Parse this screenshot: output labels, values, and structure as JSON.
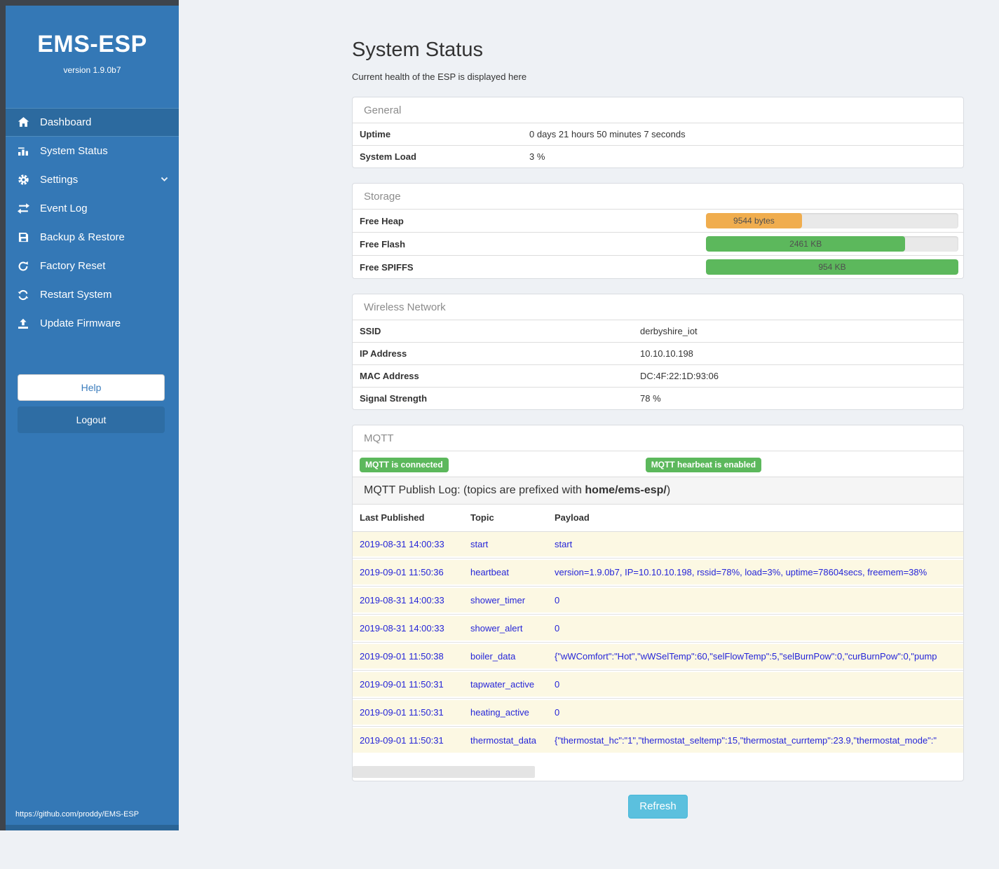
{
  "sidebar": {
    "title": "EMS-ESP",
    "version": "version 1.9.0b7",
    "items": [
      {
        "label": "Dashboard",
        "icon": "home-icon",
        "active": true,
        "chevron": false
      },
      {
        "label": "System Status",
        "icon": "status-bars-icon",
        "active": false,
        "chevron": false
      },
      {
        "label": "Settings",
        "icon": "gear-icon",
        "active": false,
        "chevron": true
      },
      {
        "label": "Event Log",
        "icon": "exchange-icon",
        "active": false,
        "chevron": false
      },
      {
        "label": "Backup & Restore",
        "icon": "save-icon",
        "active": false,
        "chevron": false
      },
      {
        "label": "Factory Reset",
        "icon": "redo-icon",
        "active": false,
        "chevron": false
      },
      {
        "label": "Restart System",
        "icon": "sync-icon",
        "active": false,
        "chevron": false
      },
      {
        "label": "Update Firmware",
        "icon": "upload-icon",
        "active": false,
        "chevron": false
      }
    ],
    "help_label": "Help",
    "logout_label": "Logout",
    "footer_link": "https://github.com/proddy/EMS-ESP"
  },
  "page": {
    "title": "System Status",
    "subtitle": "Current health of the ESP is displayed here",
    "refresh_label": "Refresh"
  },
  "general": {
    "heading": "General",
    "rows": [
      {
        "label": "Uptime",
        "value": "0 days 21 hours 50 minutes 7 seconds"
      },
      {
        "label": "System Load",
        "value": "3 %"
      }
    ]
  },
  "storage": {
    "heading": "Storage",
    "rows": [
      {
        "label": "Free Heap",
        "value": "9544 bytes",
        "percent": 38,
        "color": "#f0ad4e"
      },
      {
        "label": "Free Flash",
        "value": "2461 KB",
        "percent": 79,
        "color": "#5cb85c"
      },
      {
        "label": "Free SPIFFS",
        "value": "954 KB",
        "percent": 100,
        "color": "#5cb85c"
      }
    ]
  },
  "wireless": {
    "heading": "Wireless Network",
    "rows": [
      {
        "label": "SSID",
        "value": "derbyshire_iot"
      },
      {
        "label": "IP Address",
        "value": "10.10.10.198"
      },
      {
        "label": "MAC Address",
        "value": "DC:4F:22:1D:93:06"
      },
      {
        "label": "Signal Strength",
        "value": "78 %"
      }
    ]
  },
  "mqtt": {
    "heading": "MQTT",
    "badges": [
      "MQTT is connected",
      "MQTT hearbeat is enabled"
    ],
    "log_title_prefix": "MQTT Publish Log: (topics are prefixed with ",
    "log_title_bold": "home/ems-esp/",
    "log_title_suffix": ")",
    "columns": [
      "Last Published",
      "Topic",
      "Payload"
    ],
    "rows": [
      {
        "time": "2019-08-31 14:00:33",
        "topic": "start",
        "payload": "start"
      },
      {
        "time": "2019-09-01 11:50:36",
        "topic": "heartbeat",
        "payload": "version=1.9.0b7, IP=10.10.10.198, rssid=78%, load=3%, uptime=78604secs, freemem=38%"
      },
      {
        "time": "2019-08-31 14:00:33",
        "topic": "shower_timer",
        "payload": "0"
      },
      {
        "time": "2019-08-31 14:00:33",
        "topic": "shower_alert",
        "payload": "0"
      },
      {
        "time": "2019-09-01 11:50:38",
        "topic": "boiler_data",
        "payload": "{\"wWComfort\":\"Hot\",\"wWSelTemp\":60,\"selFlowTemp\":5,\"selBurnPow\":0,\"curBurnPow\":0,\"pump"
      },
      {
        "time": "2019-09-01 11:50:31",
        "topic": "tapwater_active",
        "payload": "0"
      },
      {
        "time": "2019-09-01 11:50:31",
        "topic": "heating_active",
        "payload": "0"
      },
      {
        "time": "2019-09-01 11:50:31",
        "topic": "thermostat_data",
        "payload": "{\"thermostat_hc\":\"1\",\"thermostat_seltemp\":15,\"thermostat_currtemp\":23.9,\"thermostat_mode\":\""
      }
    ]
  },
  "colors": {
    "sidebar_bg": "#3478b6",
    "sidebar_active_bg": "#2c6a9f",
    "badge_green": "#5cb85c",
    "bar_orange": "#f0ad4e",
    "bar_green": "#5cb85c",
    "link_blue": "#2525d8",
    "refresh_blue": "#5bc0de"
  }
}
